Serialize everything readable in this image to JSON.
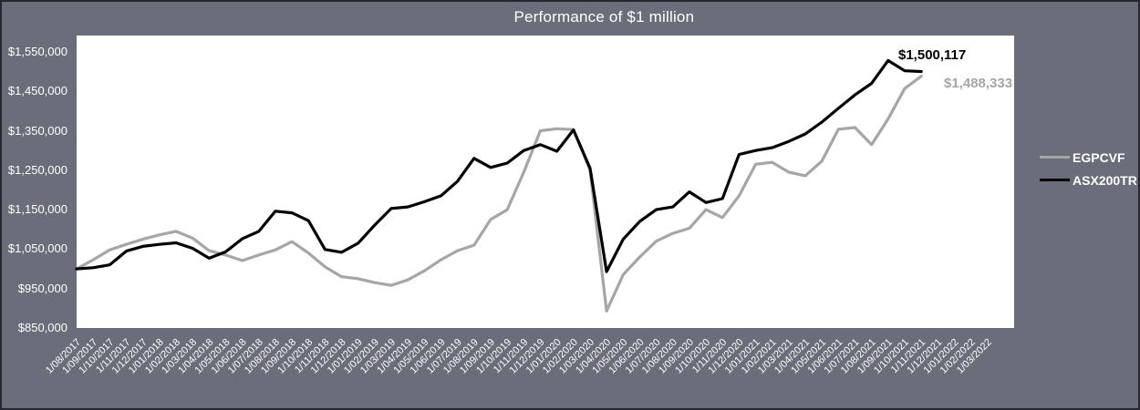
{
  "title": "Performance of $1 million",
  "colors": {
    "background": "#6C6D7A",
    "border": "#26262E",
    "plot_background": "#FFFFFF",
    "text": "#FFFFFF",
    "egpcvf_line": "#A6A6A6",
    "asx200tr_line": "#000000"
  },
  "y_axis": {
    "labels": [
      "$1,550,000",
      "$1,450,000",
      "$1,350,000",
      "$1,250,000",
      "$1,150,000",
      "$1,050,000",
      "$950,000",
      "$850,000"
    ],
    "min": 850000,
    "max": 1600000,
    "tick_step": 100000
  },
  "x_axis": {
    "labels": [
      "1/08/2017",
      "1/09/2017",
      "1/10/2017",
      "1/11/2017",
      "1/12/2017",
      "1/01/2018",
      "1/02/2018",
      "1/03/2018",
      "1/04/2018",
      "1/05/2018",
      "1/06/2018",
      "1/07/2018",
      "1/08/2018",
      "1/09/2018",
      "1/10/2018",
      "1/11/2018",
      "1/12/2018",
      "1/01/2019",
      "1/02/2019",
      "1/03/2019",
      "1/04/2019",
      "1/05/2019",
      "1/06/2019",
      "1/07/2019",
      "1/08/2019",
      "1/09/2019",
      "1/10/2019",
      "1/11/2019",
      "1/12/2019",
      "1/01/2020",
      "1/02/2020",
      "1/03/2020",
      "1/04/2020",
      "1/05/2020",
      "1/06/2020",
      "1/07/2020",
      "1/08/2020",
      "1/09/2020",
      "1/10/2020",
      "1/11/2020",
      "1/12/2020",
      "1/01/2021",
      "1/02/2021",
      "1/03/2021",
      "1/04/2021",
      "1/05/2021",
      "1/06/2021",
      "1/07/2021",
      "1/08/2021",
      "1/09/2021",
      "1/10/2021",
      "1/11/2021",
      "1/12/2021",
      "1/01/2022",
      "1/02/2022",
      "1/03/2022"
    ]
  },
  "legend": {
    "items": [
      {
        "label": "EGPCVF",
        "color": "#A6A6A6"
      },
      {
        "label": "ASX200TR",
        "color": "#000000"
      }
    ]
  },
  "end_labels": {
    "asx200tr": "$1,500,117",
    "egpcvf": "$1,488,333"
  },
  "chart_data": {
    "type": "line",
    "title": "Performance of $1 million",
    "xlabel": "",
    "ylabel": "",
    "ylim": [
      850000,
      1600000
    ],
    "grid": false,
    "legend_position": "right",
    "x": [
      "1/08/2017",
      "1/09/2017",
      "1/10/2017",
      "1/11/2017",
      "1/12/2017",
      "1/01/2018",
      "1/02/2018",
      "1/03/2018",
      "1/04/2018",
      "1/05/2018",
      "1/06/2018",
      "1/07/2018",
      "1/08/2018",
      "1/09/2018",
      "1/10/2018",
      "1/11/2018",
      "1/12/2018",
      "1/01/2019",
      "1/02/2019",
      "1/03/2019",
      "1/04/2019",
      "1/05/2019",
      "1/06/2019",
      "1/07/2019",
      "1/08/2019",
      "1/09/2019",
      "1/10/2019",
      "1/11/2019",
      "1/12/2019",
      "1/01/2020",
      "1/02/2020",
      "1/03/2020",
      "1/04/2020",
      "1/05/2020",
      "1/06/2020",
      "1/07/2020",
      "1/08/2020",
      "1/09/2020",
      "1/10/2020",
      "1/11/2020",
      "1/12/2020",
      "1/01/2021",
      "1/02/2021",
      "1/03/2021",
      "1/04/2021",
      "1/05/2021",
      "1/06/2021",
      "1/07/2021",
      "1/08/2021",
      "1/09/2021",
      "1/10/2021",
      "1/11/2021"
    ],
    "series": [
      {
        "name": "EGPCVF",
        "color": "#A6A6A6",
        "values": [
          1000000,
          1023000,
          1048000,
          1062000,
          1075000,
          1086000,
          1095000,
          1078000,
          1046000,
          1035000,
          1021000,
          1035000,
          1048000,
          1069000,
          1040000,
          1005000,
          980000,
          975000,
          965000,
          958000,
          972000,
          995000,
          1023000,
          1046000,
          1060000,
          1125000,
          1150000,
          1245000,
          1350000,
          1355000,
          1353000,
          1250000,
          893000,
          985000,
          1030000,
          1070000,
          1090000,
          1103000,
          1150000,
          1130000,
          1185000,
          1265000,
          1270000,
          1245000,
          1236000,
          1273000,
          1354000,
          1358000,
          1315000,
          1380000,
          1457000,
          1488333
        ]
      },
      {
        "name": "ASX200TR",
        "color": "#000000",
        "values": [
          1000000,
          1003000,
          1010000,
          1045000,
          1057000,
          1062000,
          1066000,
          1052000,
          1027000,
          1043000,
          1076000,
          1095000,
          1146000,
          1142000,
          1122000,
          1049000,
          1042000,
          1065000,
          1111000,
          1153000,
          1157000,
          1170000,
          1185000,
          1222000,
          1280000,
          1257000,
          1268000,
          1300000,
          1315000,
          1298000,
          1352000,
          1255000,
          993000,
          1075000,
          1120000,
          1150000,
          1157000,
          1195000,
          1168000,
          1178000,
          1290000,
          1300000,
          1307000,
          1323000,
          1342000,
          1372000,
          1407000,
          1441000,
          1470000,
          1528000,
          1502000,
          1500117
        ]
      }
    ],
    "final_values": {
      "ASX200TR": 1500117,
      "EGPCVF": 1488333
    }
  }
}
